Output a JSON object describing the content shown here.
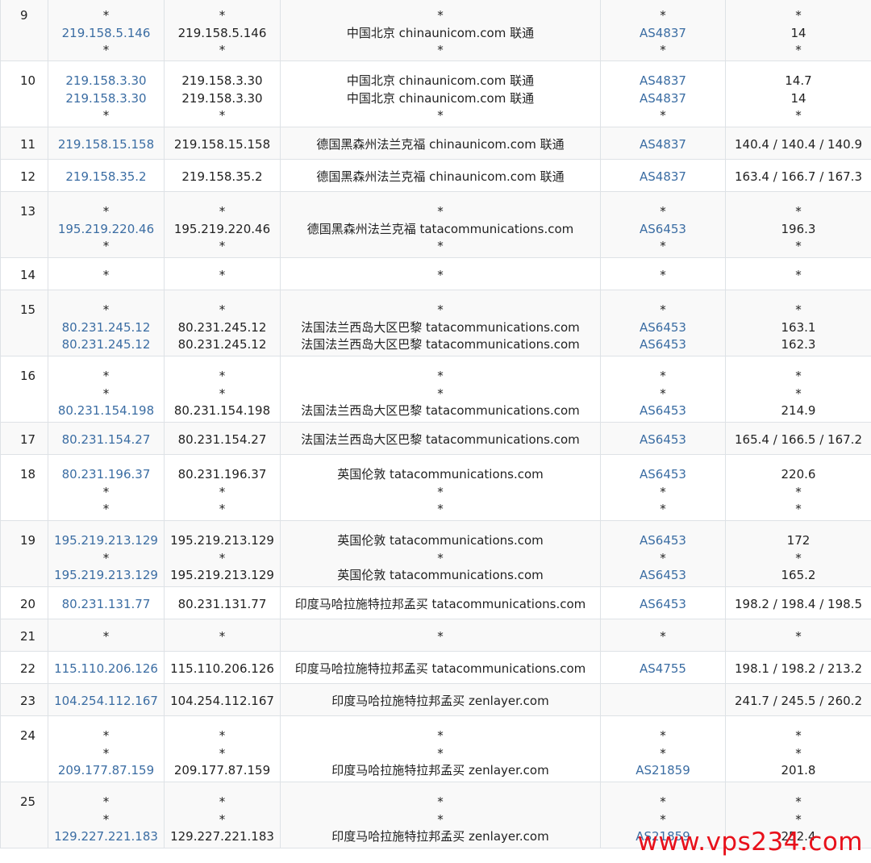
{
  "watermark": "www.vps234.com",
  "rows": [
    {
      "hop": "9",
      "ip": [
        "*",
        "219.158.5.146",
        "*"
      ],
      "host": [
        "*",
        "219.158.5.146",
        "*"
      ],
      "geo": [
        "*",
        "中国北京 chinaunicom.com 联通",
        "*"
      ],
      "as": [
        "*",
        "AS4837",
        "*"
      ],
      "time": [
        "*",
        "14",
        "*"
      ]
    },
    {
      "hop": "10",
      "ip": [
        "219.158.3.30",
        "219.158.3.30",
        "*"
      ],
      "host": [
        "219.158.3.30",
        "219.158.3.30",
        "*"
      ],
      "geo": [
        "中国北京 chinaunicom.com 联通",
        "中国北京 chinaunicom.com 联通",
        "*"
      ],
      "as": [
        "AS4837",
        "AS4837",
        "*"
      ],
      "time": [
        "14.7",
        "14",
        "*"
      ]
    },
    {
      "hop": "11",
      "ip": [
        "219.158.15.158"
      ],
      "host": [
        "219.158.15.158"
      ],
      "geo": [
        "德国黑森州法兰克福 chinaunicom.com 联通"
      ],
      "as": [
        "AS4837"
      ],
      "time": [
        "140.4 / 140.4 / 140.9"
      ]
    },
    {
      "hop": "12",
      "ip": [
        "219.158.35.2"
      ],
      "host": [
        "219.158.35.2"
      ],
      "geo": [
        "德国黑森州法兰克福 chinaunicom.com 联通"
      ],
      "as": [
        "AS4837"
      ],
      "time": [
        "163.4 / 166.7 / 167.3"
      ]
    },
    {
      "hop": "13",
      "ip": [
        "*",
        "195.219.220.46",
        "*"
      ],
      "host": [
        "*",
        "195.219.220.46",
        "*"
      ],
      "geo": [
        "*",
        "德国黑森州法兰克福 tatacommunications.com",
        "*"
      ],
      "as": [
        "*",
        "AS6453",
        "*"
      ],
      "time": [
        "*",
        "196.3",
        "*"
      ]
    },
    {
      "hop": "14",
      "ip": [
        "*"
      ],
      "host": [
        "*"
      ],
      "geo": [
        "*"
      ],
      "as": [
        "*"
      ],
      "time": [
        "*"
      ]
    },
    {
      "hop": "15",
      "ip": [
        "*",
        "80.231.245.12",
        "80.231.245.12"
      ],
      "host": [
        "*",
        "80.231.245.12",
        "80.231.245.12"
      ],
      "geo": [
        "*",
        "法国法兰西岛大区巴黎 tatacommunications.com",
        "法国法兰西岛大区巴黎 tatacommunications.com"
      ],
      "as": [
        "*",
        "AS6453",
        "AS6453"
      ],
      "time": [
        "*",
        "163.1",
        "162.3"
      ]
    },
    {
      "hop": "16",
      "ip": [
        "*",
        "*",
        "80.231.154.198"
      ],
      "host": [
        "*",
        "*",
        "80.231.154.198"
      ],
      "geo": [
        "*",
        "*",
        "法国法兰西岛大区巴黎 tatacommunications.com"
      ],
      "as": [
        "*",
        "*",
        "AS6453"
      ],
      "time": [
        "*",
        "*",
        "214.9"
      ]
    },
    {
      "hop": "17",
      "ip": [
        "80.231.154.27"
      ],
      "host": [
        "80.231.154.27"
      ],
      "geo": [
        "法国法兰西岛大区巴黎 tatacommunications.com"
      ],
      "as": [
        "AS6453"
      ],
      "time": [
        "165.4 / 166.5 / 167.2"
      ]
    },
    {
      "hop": "18",
      "ip": [
        "80.231.196.37",
        "*",
        "*"
      ],
      "host": [
        "80.231.196.37",
        "*",
        "*"
      ],
      "geo": [
        "英国伦敦 tatacommunications.com",
        "*",
        "*"
      ],
      "as": [
        "AS6453",
        "*",
        "*"
      ],
      "time": [
        "220.6",
        "*",
        "*"
      ]
    },
    {
      "hop": "19",
      "ip": [
        "195.219.213.129",
        "*",
        "195.219.213.129"
      ],
      "host": [
        "195.219.213.129",
        "*",
        "195.219.213.129"
      ],
      "geo": [
        "英国伦敦 tatacommunications.com",
        "*",
        "英国伦敦 tatacommunications.com"
      ],
      "as": [
        "AS6453",
        "*",
        "AS6453"
      ],
      "time": [
        "172",
        "*",
        "165.2"
      ]
    },
    {
      "hop": "20",
      "ip": [
        "80.231.131.77"
      ],
      "host": [
        "80.231.131.77"
      ],
      "geo": [
        "印度马哈拉施特拉邦孟买 tatacommunications.com"
      ],
      "as": [
        "AS6453"
      ],
      "time": [
        "198.2 / 198.4 / 198.5"
      ]
    },
    {
      "hop": "21",
      "ip": [
        "*"
      ],
      "host": [
        "*"
      ],
      "geo": [
        "*"
      ],
      "as": [
        "*"
      ],
      "time": [
        "*"
      ]
    },
    {
      "hop": "22",
      "ip": [
        "115.110.206.126"
      ],
      "host": [
        "115.110.206.126"
      ],
      "geo": [
        "印度马哈拉施特拉邦孟买 tatacommunications.com"
      ],
      "as": [
        "AS4755"
      ],
      "time": [
        "198.1 / 198.2 / 213.2"
      ]
    },
    {
      "hop": "23",
      "ip": [
        "104.254.112.167"
      ],
      "host": [
        "104.254.112.167"
      ],
      "geo": [
        "印度马哈拉施特拉邦孟买 zenlayer.com"
      ],
      "as": [
        ""
      ],
      "time": [
        "241.7 / 245.5 / 260.2"
      ]
    },
    {
      "hop": "24",
      "ip": [
        "*",
        "*",
        "209.177.87.159"
      ],
      "host": [
        "*",
        "*",
        "209.177.87.159"
      ],
      "geo": [
        "*",
        "*",
        "印度马哈拉施特拉邦孟买 zenlayer.com"
      ],
      "as": [
        "*",
        "*",
        "AS21859"
      ],
      "time": [
        "*",
        "*",
        "201.8"
      ]
    },
    {
      "hop": "25",
      "ip": [
        "*",
        "*",
        "129.227.221.183"
      ],
      "host": [
        "*",
        "*",
        "129.227.221.183"
      ],
      "geo": [
        "*",
        "*",
        "印度马哈拉施特拉邦孟买 zenlayer.com"
      ],
      "as": [
        "*",
        "*",
        "AS21859"
      ],
      "time": [
        "*",
        "*",
        "252.4"
      ]
    }
  ]
}
